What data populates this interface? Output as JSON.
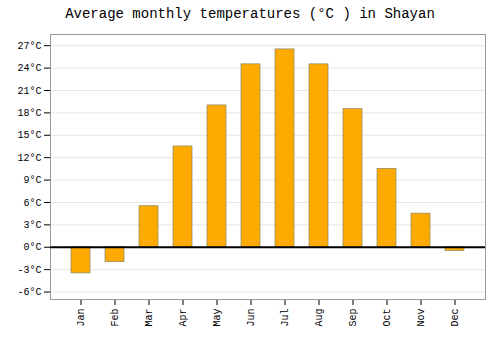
{
  "chart_data": {
    "type": "bar",
    "title": "Average monthly temperatures (°C ) in Shayan",
    "categories": [
      "Jan",
      "Feb",
      "Mar",
      "Apr",
      "May",
      "Jun",
      "Jul",
      "Aug",
      "Sep",
      "Oct",
      "Nov",
      "Dec"
    ],
    "values": [
      -3.5,
      -2.0,
      5.5,
      13.5,
      19.0,
      24.5,
      26.5,
      24.5,
      18.5,
      10.5,
      4.5,
      -0.5
    ],
    "color": "#FFAA00",
    "ylim": [
      -7,
      28.5
    ],
    "yticks": [
      {
        "value": -6,
        "label": "-6°C"
      },
      {
        "value": -3,
        "label": "-3°C"
      },
      {
        "value": 0,
        "label": "0°C"
      },
      {
        "value": 3,
        "label": "3°C"
      },
      {
        "value": 6,
        "label": "6°C"
      },
      {
        "value": 9,
        "label": "9°C"
      },
      {
        "value": 12,
        "label": "12°C"
      },
      {
        "value": 15,
        "label": "15°C"
      },
      {
        "value": 18,
        "label": "18°C"
      },
      {
        "value": 21,
        "label": "21°C"
      },
      {
        "value": 24,
        "label": "24°C"
      },
      {
        "value": 27,
        "label": "27°C"
      }
    ],
    "grid": true
  }
}
